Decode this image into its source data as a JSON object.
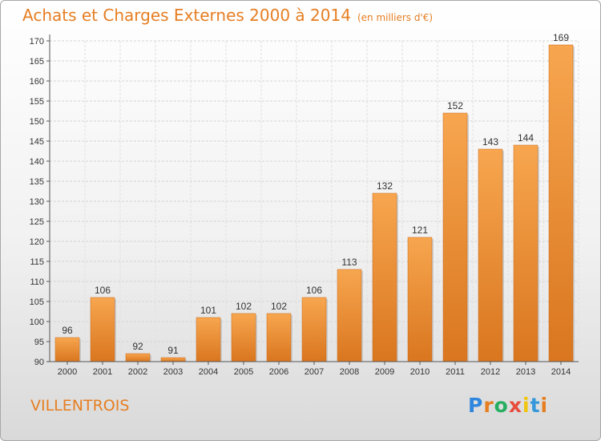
{
  "title": "Achats et Charges Externes 2000 à 2014",
  "unit": "(en milliers d'€)",
  "commune": "VILLENTROIS",
  "logo": {
    "letters": [
      "P",
      "r",
      "o",
      "x",
      "i",
      "t",
      "i"
    ],
    "colors": [
      "#2e86de",
      "#e67e22",
      "#27ae60",
      "#e74c3c",
      "#f1c40f",
      "#3498db",
      "#e67e22"
    ]
  },
  "colors": {
    "bar_light": "#f7a64f",
    "bar_dark": "#d9761f",
    "title": "#e67e22"
  },
  "chart_data": {
    "type": "bar",
    "categories": [
      "2000",
      "2001",
      "2002",
      "2003",
      "2004",
      "2005",
      "2006",
      "2007",
      "2008",
      "2009",
      "2010",
      "2011",
      "2012",
      "2013",
      "2014"
    ],
    "values": [
      96,
      106,
      92,
      91,
      101,
      102,
      102,
      106,
      113,
      132,
      121,
      152,
      143,
      144,
      169
    ],
    "ylim": [
      90,
      170
    ],
    "yticks": [
      90,
      95,
      100,
      105,
      110,
      115,
      120,
      125,
      130,
      135,
      140,
      145,
      150,
      155,
      160,
      165,
      170
    ],
    "grid": true,
    "data_labels": true
  }
}
